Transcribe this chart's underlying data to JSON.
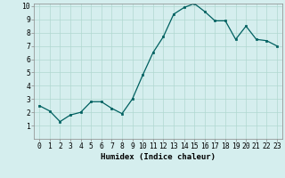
{
  "x": [
    0,
    1,
    2,
    3,
    4,
    5,
    6,
    7,
    8,
    9,
    10,
    11,
    12,
    13,
    14,
    15,
    16,
    17,
    18,
    19,
    20,
    21,
    22,
    23
  ],
  "y": [
    2.5,
    2.1,
    1.3,
    1.8,
    2.0,
    2.8,
    2.8,
    2.3,
    1.9,
    3.0,
    4.8,
    6.5,
    7.7,
    9.4,
    9.9,
    10.2,
    9.6,
    8.9,
    8.9,
    7.5,
    8.5,
    7.5,
    7.4,
    7.0
  ],
  "xlabel": "Humidex (Indice chaleur)",
  "ylim_min": 0,
  "ylim_max": 10,
  "xlim_min": -0.5,
  "xlim_max": 23.5,
  "yticks": [
    1,
    2,
    3,
    4,
    5,
    6,
    7,
    8,
    9,
    10
  ],
  "xticks": [
    0,
    1,
    2,
    3,
    4,
    5,
    6,
    7,
    8,
    9,
    10,
    11,
    12,
    13,
    14,
    15,
    16,
    17,
    18,
    19,
    20,
    21,
    22,
    23
  ],
  "line_color": "#006060",
  "marker_color": "#006060",
  "bg_color": "#d5eeee",
  "grid_color": "#b0d8d0",
  "xlabel_fontsize": 6.5,
  "tick_fontsize": 5.8
}
